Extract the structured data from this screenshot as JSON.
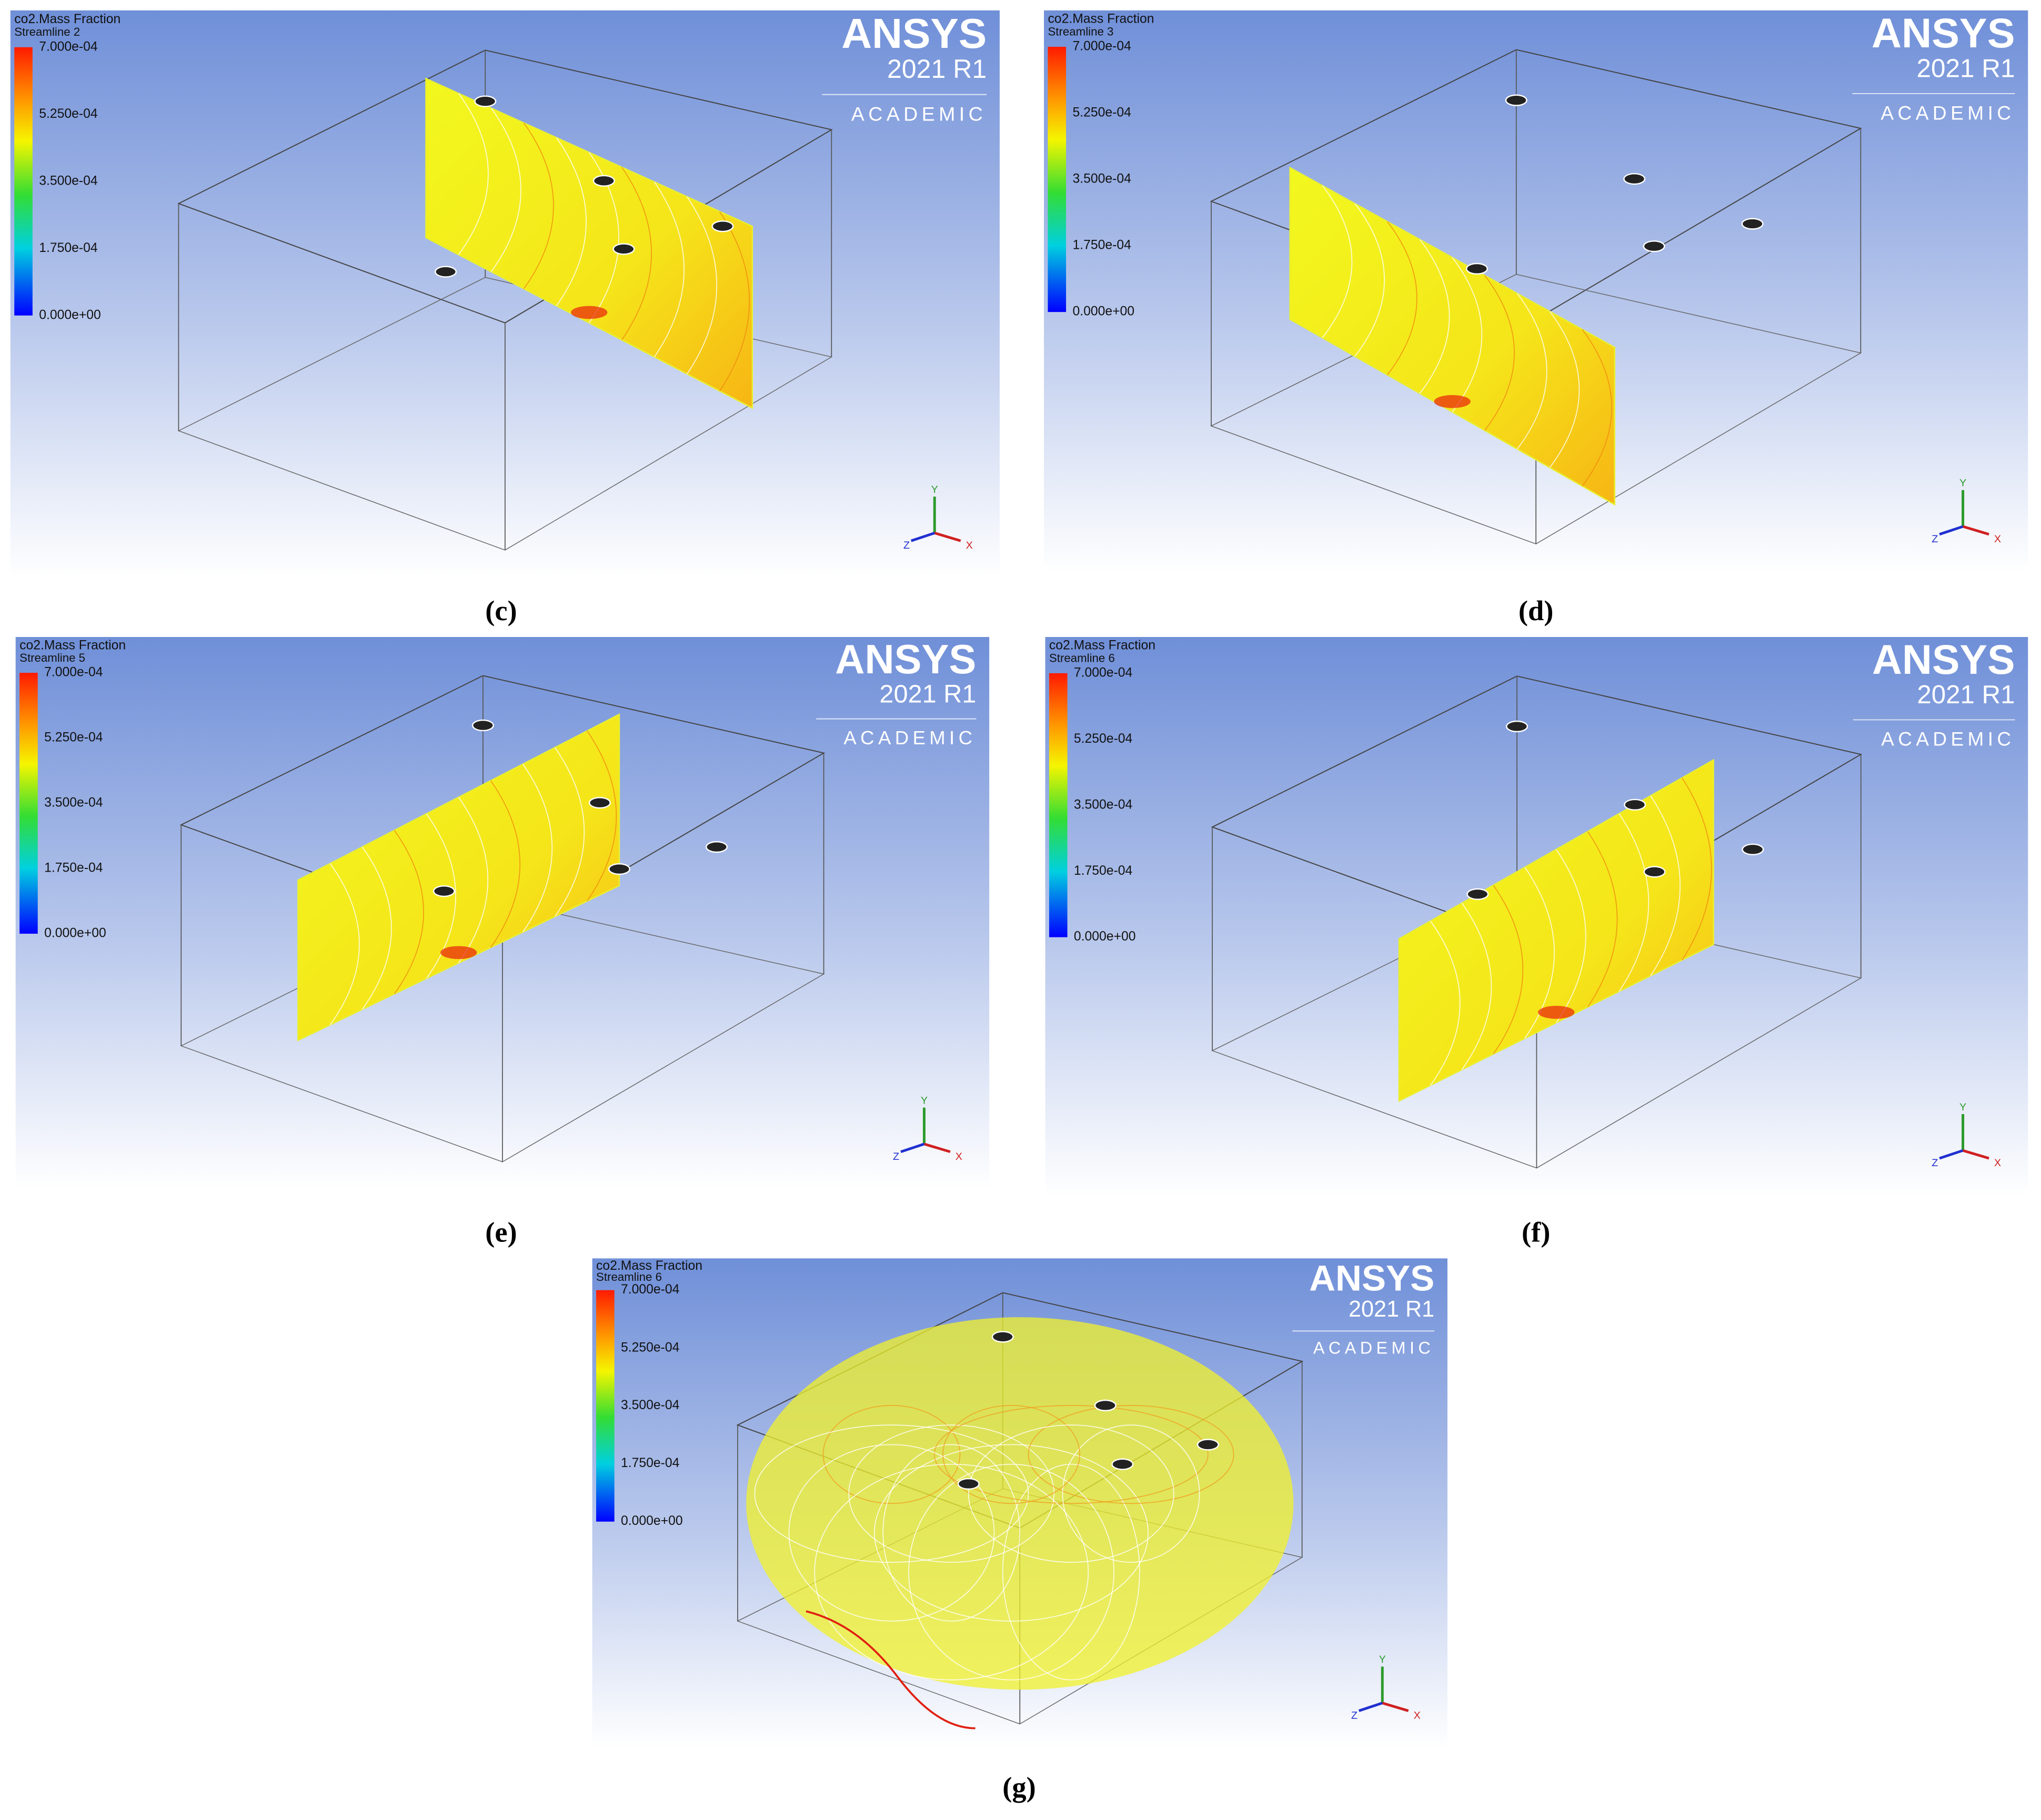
{
  "panels": [
    {
      "caption": "(c)",
      "legend_title": "co2.Mass Fraction",
      "legend_subtitle": "Streamline 2",
      "scale_labels": [
        "7.000e-04",
        "5.250e-04",
        "3.500e-04",
        "1.750e-04",
        "0.000e+00"
      ],
      "logo": "ANSYS",
      "version": "2021 R1",
      "edition": "ACADEMIC",
      "axes": [
        "Y",
        "Z",
        "X"
      ]
    },
    {
      "caption": "(d)",
      "legend_title": "co2.Mass Fraction",
      "legend_subtitle": "Streamline 3",
      "scale_labels": [
        "7.000e-04",
        "5.250e-04",
        "3.500e-04",
        "1.750e-04",
        "0.000e+00"
      ],
      "logo": "ANSYS",
      "version": "2021 R1",
      "edition": "ACADEMIC",
      "axes": [
        "Y",
        "Z",
        "X"
      ]
    },
    {
      "caption": "(e)",
      "legend_title": "co2.Mass Fraction",
      "legend_subtitle": "Streamline 5",
      "scale_labels": [
        "7.000e-04",
        "5.250e-04",
        "3.500e-04",
        "1.750e-04",
        "0.000e+00"
      ],
      "logo": "ANSYS",
      "version": "2021 R1",
      "edition": "ACADEMIC",
      "axes": [
        "Y",
        "Z",
        "X"
      ]
    },
    {
      "caption": "(f)",
      "legend_title": "co2.Mass Fraction",
      "legend_subtitle": "Streamline 6",
      "scale_labels": [
        "7.000e-04",
        "5.250e-04",
        "3.500e-04",
        "1.750e-04",
        "0.000e+00"
      ],
      "logo": "ANSYS",
      "version": "2021 R1",
      "edition": "ACADEMIC",
      "axes": [
        "Y",
        "Z",
        "X"
      ]
    },
    {
      "caption": "(g)",
      "legend_title": "co2.Mass Fraction",
      "legend_subtitle": "Streamline 6",
      "scale_labels": [
        "7.000e-04",
        "5.250e-04",
        "3.500e-04",
        "1.750e-04",
        "0.000e+00"
      ],
      "logo": "ANSYS",
      "version": "2021 R1",
      "edition": "ACADEMIC",
      "axes": [
        "Y",
        "Z",
        "X"
      ]
    }
  ]
}
